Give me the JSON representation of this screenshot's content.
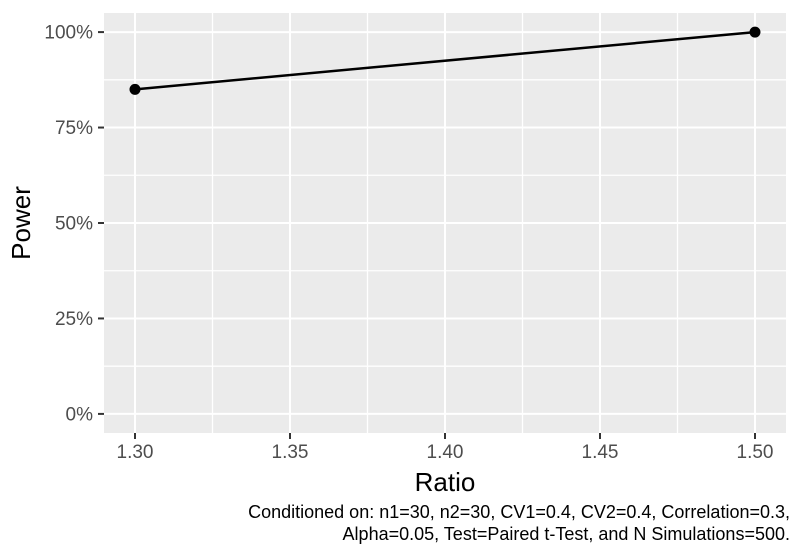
{
  "chart_data": {
    "type": "line",
    "title": "",
    "xlabel": "Ratio",
    "ylabel": "Power",
    "x": [
      1.3,
      1.5
    ],
    "series": [
      {
        "name": "Power",
        "values": [
          85,
          100
        ],
        "unit": "%"
      }
    ],
    "x_axis": {
      "tick_values": [
        1.3,
        1.35,
        1.4,
        1.45,
        1.5
      ],
      "tick_labels": [
        "1.30",
        "1.35",
        "1.40",
        "1.45",
        "1.50"
      ],
      "minor_ticks": [
        1.325,
        1.375,
        1.425,
        1.475
      ]
    },
    "y_axis": {
      "tick_values": [
        0,
        25,
        50,
        75,
        100
      ],
      "tick_labels": [
        "0%",
        "25%",
        "50%",
        "75%",
        "100%"
      ],
      "minor_ticks": [
        12.5,
        37.5,
        62.5,
        87.5
      ]
    },
    "xlim": [
      1.29,
      1.51
    ],
    "ylim": [
      -5,
      105
    ],
    "grid": true,
    "legend": "none",
    "caption": {
      "line1": "Conditioned on: n1=30, n2=30, CV1=0.4, CV2=0.4, Correlation=0.3,",
      "line2": "Alpha=0.05, Test=Paired t-Test, and N Simulations=500."
    },
    "colors": {
      "background": "#FFFFFF",
      "panel_bg": "#EBEBEB",
      "grid": "#FFFFFF",
      "line": "#000000",
      "point": "#000000",
      "tick_text": "#4D4D4D",
      "tick_mark": "#333333",
      "axis_title_text": "#000000",
      "caption_text": "#000000"
    }
  }
}
